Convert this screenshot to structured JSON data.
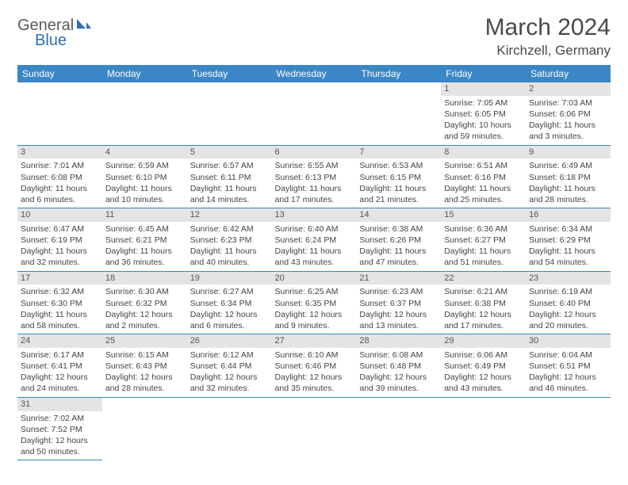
{
  "logo": {
    "text1": "General",
    "text2": "Blue"
  },
  "title": "March 2024",
  "location": "Kirchzell, Germany",
  "colors": {
    "header_bg": "#3b86c7",
    "header_text": "#ffffff",
    "daynum_bg": "#e4e4e4",
    "border": "#3b86c7",
    "text": "#444444",
    "logo_general": "#5a5a5a",
    "logo_blue": "#2a6fb5"
  },
  "day_headers": [
    "Sunday",
    "Monday",
    "Tuesday",
    "Wednesday",
    "Thursday",
    "Friday",
    "Saturday"
  ],
  "weeks": [
    [
      null,
      null,
      null,
      null,
      null,
      {
        "n": "1",
        "sunrise": "Sunrise: 7:05 AM",
        "sunset": "Sunset: 6:05 PM",
        "daylight": "Daylight: 10 hours and 59 minutes."
      },
      {
        "n": "2",
        "sunrise": "Sunrise: 7:03 AM",
        "sunset": "Sunset: 6:06 PM",
        "daylight": "Daylight: 11 hours and 3 minutes."
      }
    ],
    [
      {
        "n": "3",
        "sunrise": "Sunrise: 7:01 AM",
        "sunset": "Sunset: 6:08 PM",
        "daylight": "Daylight: 11 hours and 6 minutes."
      },
      {
        "n": "4",
        "sunrise": "Sunrise: 6:59 AM",
        "sunset": "Sunset: 6:10 PM",
        "daylight": "Daylight: 11 hours and 10 minutes."
      },
      {
        "n": "5",
        "sunrise": "Sunrise: 6:57 AM",
        "sunset": "Sunset: 6:11 PM",
        "daylight": "Daylight: 11 hours and 14 minutes."
      },
      {
        "n": "6",
        "sunrise": "Sunrise: 6:55 AM",
        "sunset": "Sunset: 6:13 PM",
        "daylight": "Daylight: 11 hours and 17 minutes."
      },
      {
        "n": "7",
        "sunrise": "Sunrise: 6:53 AM",
        "sunset": "Sunset: 6:15 PM",
        "daylight": "Daylight: 11 hours and 21 minutes."
      },
      {
        "n": "8",
        "sunrise": "Sunrise: 6:51 AM",
        "sunset": "Sunset: 6:16 PM",
        "daylight": "Daylight: 11 hours and 25 minutes."
      },
      {
        "n": "9",
        "sunrise": "Sunrise: 6:49 AM",
        "sunset": "Sunset: 6:18 PM",
        "daylight": "Daylight: 11 hours and 28 minutes."
      }
    ],
    [
      {
        "n": "10",
        "sunrise": "Sunrise: 6:47 AM",
        "sunset": "Sunset: 6:19 PM",
        "daylight": "Daylight: 11 hours and 32 minutes."
      },
      {
        "n": "11",
        "sunrise": "Sunrise: 6:45 AM",
        "sunset": "Sunset: 6:21 PM",
        "daylight": "Daylight: 11 hours and 36 minutes."
      },
      {
        "n": "12",
        "sunrise": "Sunrise: 6:42 AM",
        "sunset": "Sunset: 6:23 PM",
        "daylight": "Daylight: 11 hours and 40 minutes."
      },
      {
        "n": "13",
        "sunrise": "Sunrise: 6:40 AM",
        "sunset": "Sunset: 6:24 PM",
        "daylight": "Daylight: 11 hours and 43 minutes."
      },
      {
        "n": "14",
        "sunrise": "Sunrise: 6:38 AM",
        "sunset": "Sunset: 6:26 PM",
        "daylight": "Daylight: 11 hours and 47 minutes."
      },
      {
        "n": "15",
        "sunrise": "Sunrise: 6:36 AM",
        "sunset": "Sunset: 6:27 PM",
        "daylight": "Daylight: 11 hours and 51 minutes."
      },
      {
        "n": "16",
        "sunrise": "Sunrise: 6:34 AM",
        "sunset": "Sunset: 6:29 PM",
        "daylight": "Daylight: 11 hours and 54 minutes."
      }
    ],
    [
      {
        "n": "17",
        "sunrise": "Sunrise: 6:32 AM",
        "sunset": "Sunset: 6:30 PM",
        "daylight": "Daylight: 11 hours and 58 minutes."
      },
      {
        "n": "18",
        "sunrise": "Sunrise: 6:30 AM",
        "sunset": "Sunset: 6:32 PM",
        "daylight": "Daylight: 12 hours and 2 minutes."
      },
      {
        "n": "19",
        "sunrise": "Sunrise: 6:27 AM",
        "sunset": "Sunset: 6:34 PM",
        "daylight": "Daylight: 12 hours and 6 minutes."
      },
      {
        "n": "20",
        "sunrise": "Sunrise: 6:25 AM",
        "sunset": "Sunset: 6:35 PM",
        "daylight": "Daylight: 12 hours and 9 minutes."
      },
      {
        "n": "21",
        "sunrise": "Sunrise: 6:23 AM",
        "sunset": "Sunset: 6:37 PM",
        "daylight": "Daylight: 12 hours and 13 minutes."
      },
      {
        "n": "22",
        "sunrise": "Sunrise: 6:21 AM",
        "sunset": "Sunset: 6:38 PM",
        "daylight": "Daylight: 12 hours and 17 minutes."
      },
      {
        "n": "23",
        "sunrise": "Sunrise: 6:19 AM",
        "sunset": "Sunset: 6:40 PM",
        "daylight": "Daylight: 12 hours and 20 minutes."
      }
    ],
    [
      {
        "n": "24",
        "sunrise": "Sunrise: 6:17 AM",
        "sunset": "Sunset: 6:41 PM",
        "daylight": "Daylight: 12 hours and 24 minutes."
      },
      {
        "n": "25",
        "sunrise": "Sunrise: 6:15 AM",
        "sunset": "Sunset: 6:43 PM",
        "daylight": "Daylight: 12 hours and 28 minutes."
      },
      {
        "n": "26",
        "sunrise": "Sunrise: 6:12 AM",
        "sunset": "Sunset: 6:44 PM",
        "daylight": "Daylight: 12 hours and 32 minutes."
      },
      {
        "n": "27",
        "sunrise": "Sunrise: 6:10 AM",
        "sunset": "Sunset: 6:46 PM",
        "daylight": "Daylight: 12 hours and 35 minutes."
      },
      {
        "n": "28",
        "sunrise": "Sunrise: 6:08 AM",
        "sunset": "Sunset: 6:48 PM",
        "daylight": "Daylight: 12 hours and 39 minutes."
      },
      {
        "n": "29",
        "sunrise": "Sunrise: 6:06 AM",
        "sunset": "Sunset: 6:49 PM",
        "daylight": "Daylight: 12 hours and 43 minutes."
      },
      {
        "n": "30",
        "sunrise": "Sunrise: 6:04 AM",
        "sunset": "Sunset: 6:51 PM",
        "daylight": "Daylight: 12 hours and 46 minutes."
      }
    ],
    [
      {
        "n": "31",
        "sunrise": "Sunrise: 7:02 AM",
        "sunset": "Sunset: 7:52 PM",
        "daylight": "Daylight: 12 hours and 50 minutes."
      },
      null,
      null,
      null,
      null,
      null,
      null
    ]
  ]
}
